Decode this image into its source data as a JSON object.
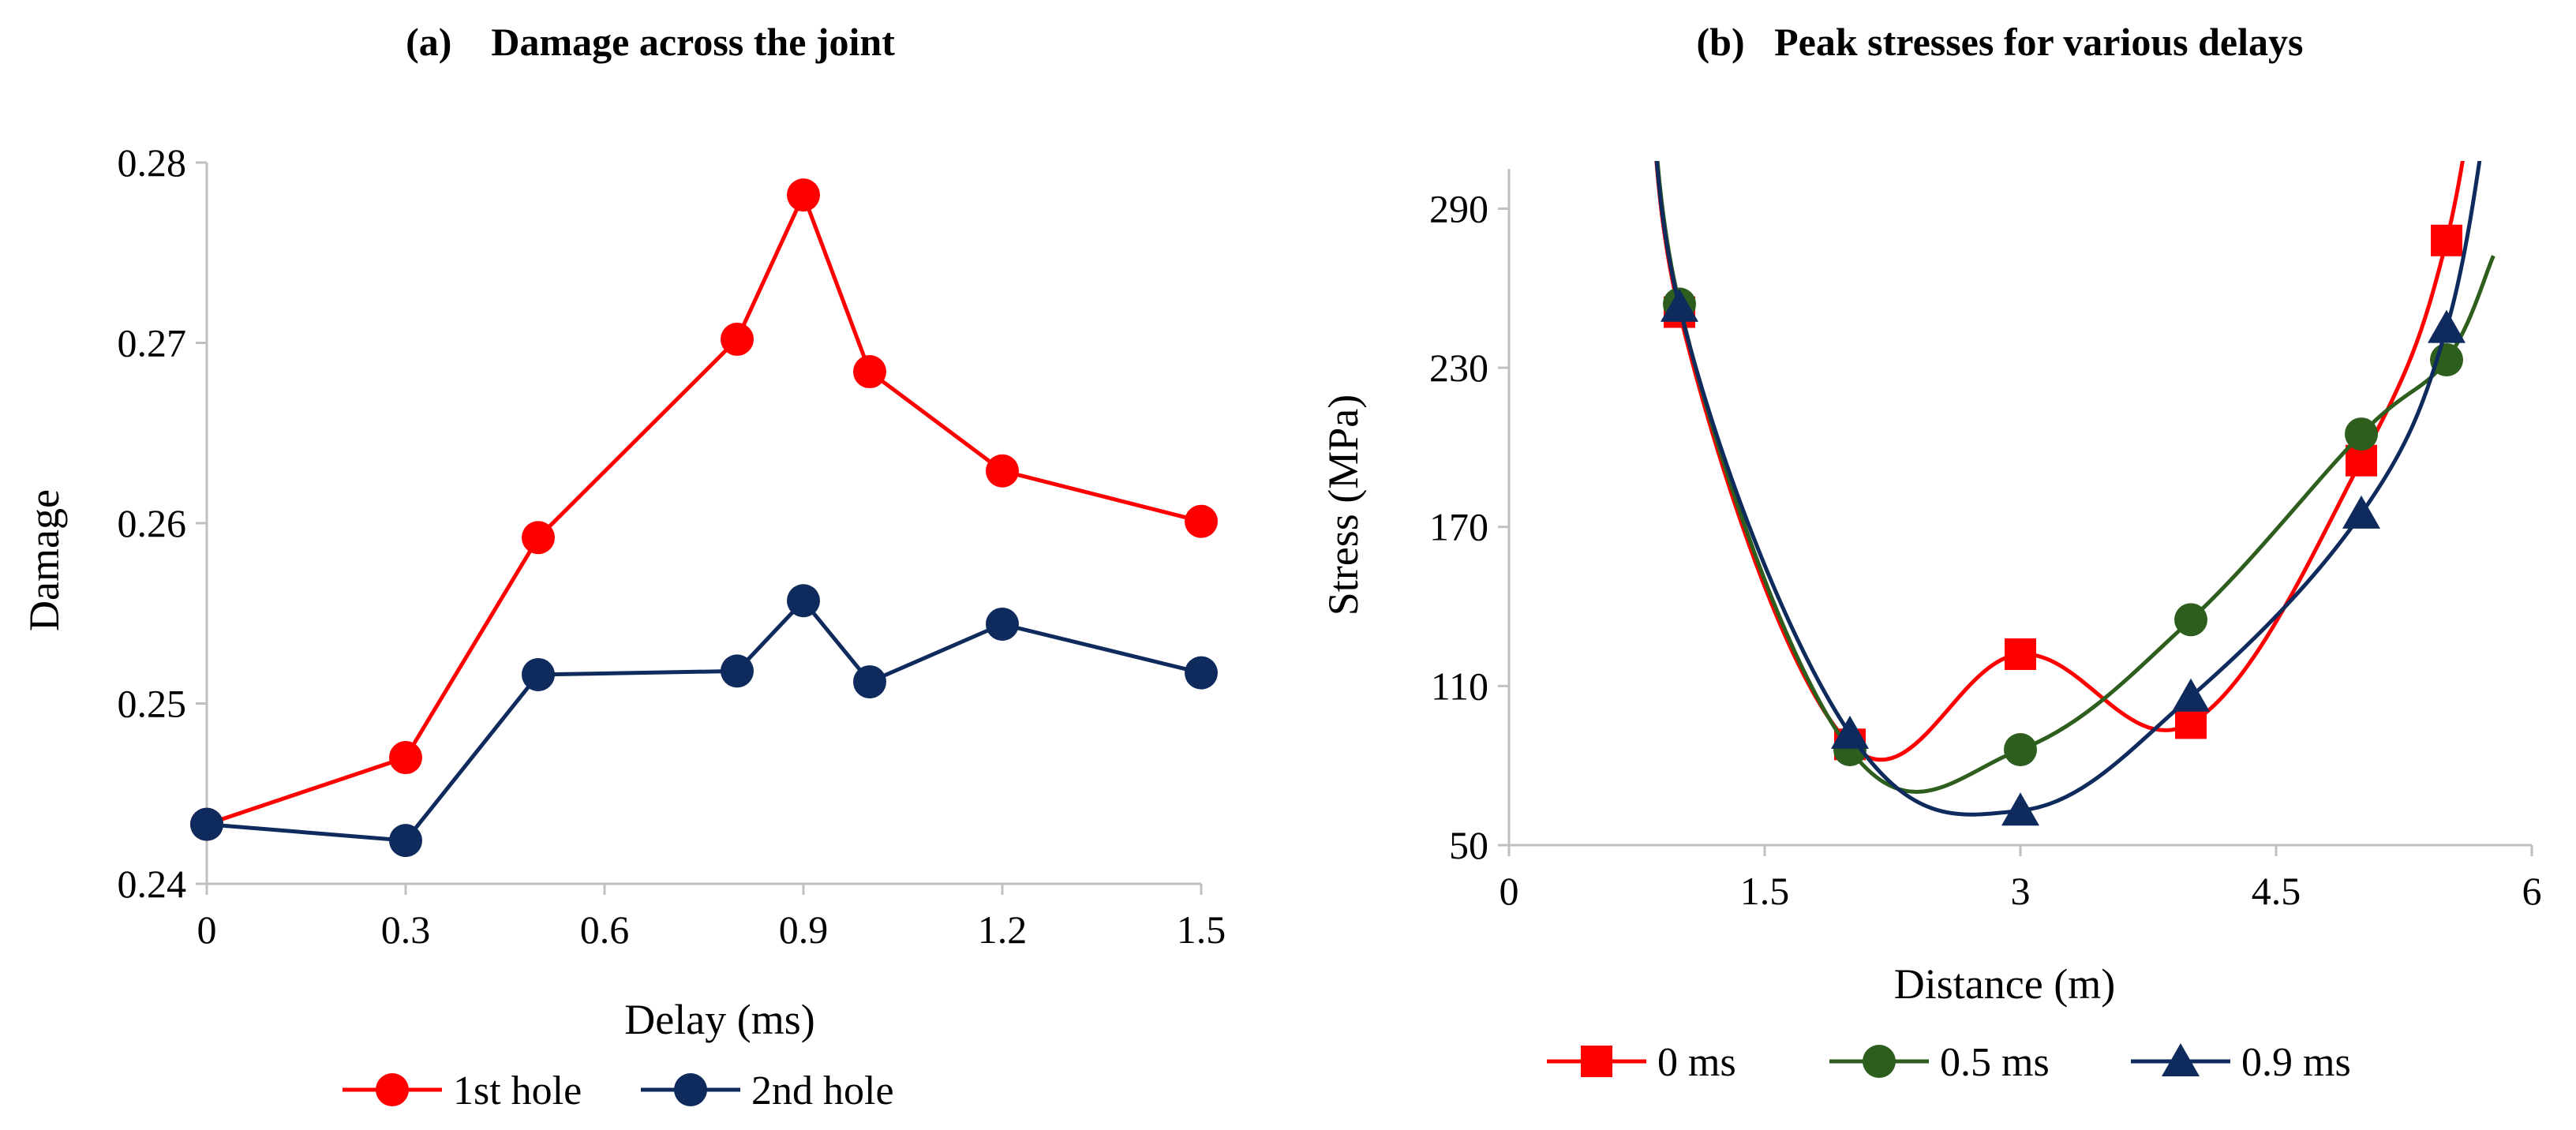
{
  "chart_data": [
    {
      "type": "line",
      "title": "(a)    Damage across the joint",
      "xlabel": "Delay (ms)",
      "ylabel": "Damage",
      "xlim": [
        0,
        1.5
      ],
      "ylim": [
        0.24,
        0.28
      ],
      "xticks": [
        "0",
        "0.3",
        "0.6",
        "0.9",
        "1.2",
        "1.5"
      ],
      "yticks": [
        "0.24",
        "0.25",
        "0.26",
        "0.27",
        "0.28"
      ],
      "xtick_values": [
        0,
        0.3,
        0.6,
        0.9,
        1.2,
        1.5
      ],
      "ytick_values": [
        0.24,
        0.25,
        0.26,
        0.27,
        0.28
      ],
      "series": [
        {
          "name": "1st hole",
          "color": "#ff0000",
          "marker": "circle",
          "x": [
            0,
            0.3,
            0.5,
            0.8,
            0.9,
            1.0,
            1.2,
            1.5
          ],
          "y": [
            0.2433,
            0.247,
            0.2592,
            0.2702,
            0.2782,
            0.2684,
            0.2629,
            0.2601
          ]
        },
        {
          "name": "2nd hole",
          "color": "#0f2a5c",
          "marker": "circle",
          "x": [
            0,
            0.3,
            0.5,
            0.8,
            0.9,
            1.0,
            1.2,
            1.5
          ],
          "y": [
            0.2433,
            0.2424,
            0.2516,
            0.2518,
            0.2557,
            0.2512,
            0.2544,
            0.2517
          ]
        }
      ]
    },
    {
      "type": "line",
      "title": "(b)   Peak stresses for various delays",
      "xlabel": "Distance (m)",
      "ylabel": "Stress (MPa)",
      "xlim": [
        0,
        6
      ],
      "ylim": [
        50,
        305
      ],
      "xticks": [
        "0",
        "1.5",
        "3",
        "4.5",
        "6"
      ],
      "yticks": [
        "50",
        "110",
        "170",
        "230",
        "290"
      ],
      "xtick_values": [
        0,
        1.5,
        3,
        4.5,
        6
      ],
      "ytick_values": [
        50,
        110,
        170,
        230,
        290
      ],
      "series": [
        {
          "name": "0 ms",
          "color": "#ff0000",
          "marker": "square",
          "x": [
            1,
            2,
            3,
            4,
            5,
            5.5
          ],
          "y": [
            251,
            88,
            122,
            96,
            195,
            278
          ]
        },
        {
          "name": "0.5 ms",
          "color": "#2e5e1e",
          "marker": "circle",
          "x": [
            1,
            2,
            3,
            4,
            5,
            5.5
          ],
          "y": [
            254,
            86,
            86,
            135,
            205,
            233
          ]
        },
        {
          "name": "0.9 ms",
          "color": "#0f2a5c",
          "marker": "triangle",
          "x": [
            1,
            2,
            3,
            4,
            5,
            5.5
          ],
          "y": [
            253,
            92,
            63,
            106,
            175,
            245
          ]
        }
      ]
    }
  ]
}
